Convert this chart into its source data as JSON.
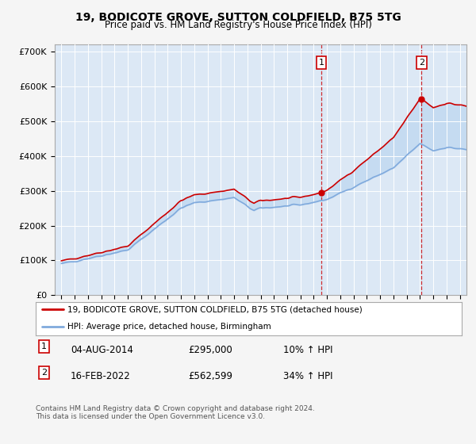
{
  "title": "19, BODICOTE GROVE, SUTTON COLDFIELD, B75 5TG",
  "subtitle": "Price paid vs. HM Land Registry's House Price Index (HPI)",
  "ylim": [
    0,
    720000
  ],
  "yticks": [
    0,
    100000,
    200000,
    300000,
    400000,
    500000,
    600000,
    700000
  ],
  "ytick_labels": [
    "£0",
    "£100K",
    "£200K",
    "£300K",
    "£400K",
    "£500K",
    "£600K",
    "£700K"
  ],
  "background_color": "#f5f5f5",
  "plot_bg_color": "#dce8f5",
  "grid_color": "#ffffff",
  "line1_color": "#cc0000",
  "line2_color": "#80aadd",
  "fill_color": "#c0d8f0",
  "sale1_year": 2014.58,
  "sale1_price": 295000,
  "sale1_text": "04-AUG-2014",
  "sale1_price_text": "£295,000",
  "sale1_hpi_text": "10% ↑ HPI",
  "sale2_year": 2022.12,
  "sale2_price": 562599,
  "sale2_text": "16-FEB-2022",
  "sale2_price_text": "£562,599",
  "sale2_hpi_text": "34% ↑ HPI",
  "legend_line1": "19, BODICOTE GROVE, SUTTON COLDFIELD, B75 5TG (detached house)",
  "legend_line2": "HPI: Average price, detached house, Birmingham",
  "footnote": "Contains HM Land Registry data © Crown copyright and database right 2024.\nThis data is licensed under the Open Government Licence v3.0."
}
